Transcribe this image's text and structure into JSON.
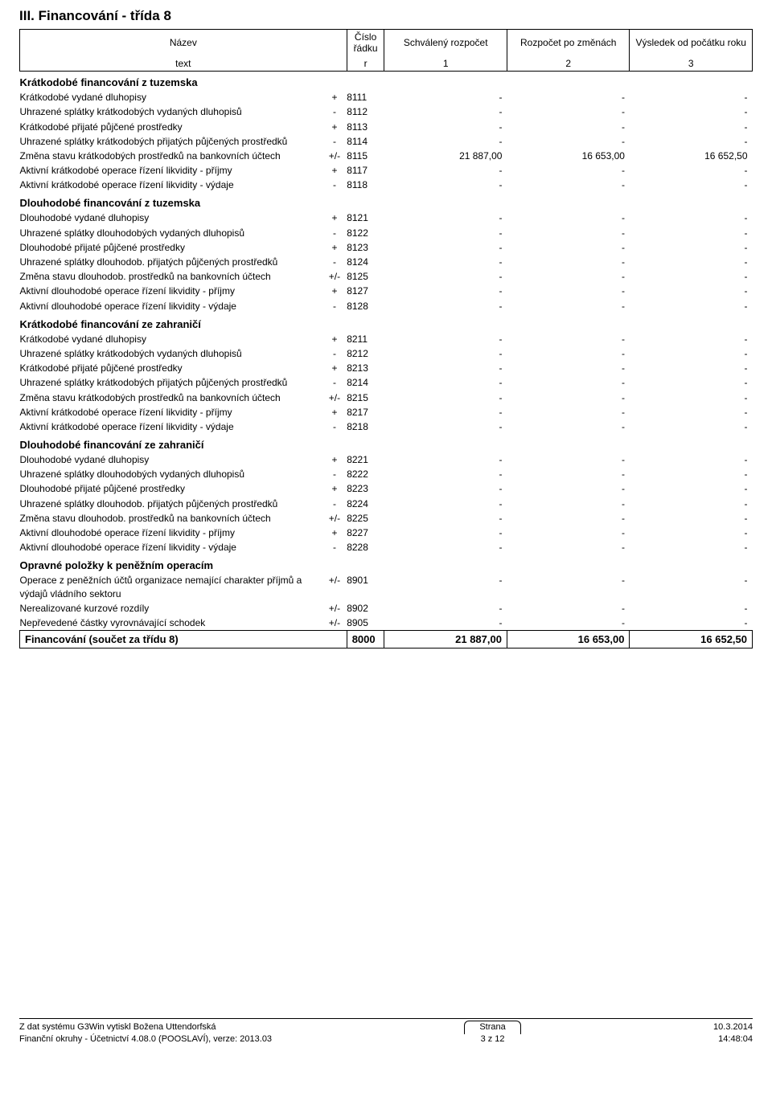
{
  "title": "III. Financování - třída 8",
  "header": {
    "name_top": "Název",
    "name_key": "text",
    "row_top": "Číslo řádku",
    "row_key": "r",
    "col1_top": "Schválený rozpočet",
    "col1_key": "1",
    "col2_top": "Rozpočet po změnách",
    "col2_key": "2",
    "col3_top": "Výsledek od počátku roku",
    "col3_key": "3"
  },
  "sections": [
    {
      "label": "Krátkodobé financování z tuzemska",
      "rows": [
        {
          "name": "Krátkodobé vydané dluhopisy",
          "sign": "+",
          "row": "8111",
          "v1": "-",
          "v2": "-",
          "v3": "-"
        },
        {
          "name": "Uhrazené splátky krátkodobých vydaných dluhopisů",
          "sign": "-",
          "row": "8112",
          "v1": "-",
          "v2": "-",
          "v3": "-"
        },
        {
          "name": "Krátkodobé přijaté půjčené prostředky",
          "sign": "+",
          "row": "8113",
          "v1": "-",
          "v2": "-",
          "v3": "-"
        },
        {
          "name": "Uhrazené splátky krátkodobých přijatých půjčených prostředků",
          "sign": "-",
          "row": "8114",
          "v1": "-",
          "v2": "-",
          "v3": "-"
        },
        {
          "name": "Změna stavu krátkodobých prostředků na bankovních účtech",
          "sign": "+/-",
          "row": "8115",
          "v1": "21 887,00",
          "v2": "16 653,00",
          "v3": "16 652,50"
        },
        {
          "name": "Aktivní krátkodobé operace řízení likvidity - příjmy",
          "sign": "+",
          "row": "8117",
          "v1": "-",
          "v2": "-",
          "v3": "-"
        },
        {
          "name": "Aktivní krátkodobé operace řízení likvidity - výdaje",
          "sign": "-",
          "row": "8118",
          "v1": "-",
          "v2": "-",
          "v3": "-"
        }
      ]
    },
    {
      "label": "Dlouhodobé financování z tuzemska",
      "rows": [
        {
          "name": "Dlouhodobé vydané dluhopisy",
          "sign": "+",
          "row": "8121",
          "v1": "-",
          "v2": "-",
          "v3": "-"
        },
        {
          "name": "Uhrazené splátky dlouhodobých vydaných dluhopisů",
          "sign": "-",
          "row": "8122",
          "v1": "-",
          "v2": "-",
          "v3": "-"
        },
        {
          "name": "Dlouhodobé přijaté půjčené prostředky",
          "sign": "+",
          "row": "8123",
          "v1": "-",
          "v2": "-",
          "v3": "-"
        },
        {
          "name": "Uhrazené splátky dlouhodob. přijatých půjčených prostředků",
          "sign": "-",
          "row": "8124",
          "v1": "-",
          "v2": "-",
          "v3": "-"
        },
        {
          "name": "Změna stavu dlouhodob. prostředků na bankovních účtech",
          "sign": "+/-",
          "row": "8125",
          "v1": "-",
          "v2": "-",
          "v3": "-"
        },
        {
          "name": "Aktivní dlouhodobé operace řízení likvidity - příjmy",
          "sign": "+",
          "row": "8127",
          "v1": "-",
          "v2": "-",
          "v3": "-"
        },
        {
          "name": "Aktivní dlouhodobé operace řízení likvidity - výdaje",
          "sign": "-",
          "row": "8128",
          "v1": "-",
          "v2": "-",
          "v3": "-"
        }
      ]
    },
    {
      "label": "Krátkodobé financování ze zahraničí",
      "rows": [
        {
          "name": "Krátkodobé vydané dluhopisy",
          "sign": "+",
          "row": "8211",
          "v1": "-",
          "v2": "-",
          "v3": "-"
        },
        {
          "name": "Uhrazené splátky krátkodobých vydaných dluhopisů",
          "sign": "-",
          "row": "8212",
          "v1": "-",
          "v2": "-",
          "v3": "-"
        },
        {
          "name": "Krátkodobé přijaté půjčené prostředky",
          "sign": "+",
          "row": "8213",
          "v1": "-",
          "v2": "-",
          "v3": "-"
        },
        {
          "name": "Uhrazené splátky krátkodobých přijatých půjčených prostředků",
          "sign": "-",
          "row": "8214",
          "v1": "-",
          "v2": "-",
          "v3": "-"
        },
        {
          "name": "Změna stavu krátkodobých prostředků na bankovních účtech",
          "sign": "+/-",
          "row": "8215",
          "v1": "-",
          "v2": "-",
          "v3": "-"
        },
        {
          "name": "Aktivní krátkodobé operace řízení likvidity - příjmy",
          "sign": "+",
          "row": "8217",
          "v1": "-",
          "v2": "-",
          "v3": "-"
        },
        {
          "name": "Aktivní krátkodobé operace řízení likvidity - výdaje",
          "sign": "-",
          "row": "8218",
          "v1": "-",
          "v2": "-",
          "v3": "-"
        }
      ]
    },
    {
      "label": "Dlouhodobé financování ze zahraničí",
      "rows": [
        {
          "name": "Dlouhodobé vydané dluhopisy",
          "sign": "+",
          "row": "8221",
          "v1": "-",
          "v2": "-",
          "v3": "-"
        },
        {
          "name": "Uhrazené splátky dlouhodobých vydaných dluhopisů",
          "sign": "-",
          "row": "8222",
          "v1": "-",
          "v2": "-",
          "v3": "-"
        },
        {
          "name": "Dlouhodobé přijaté půjčené prostředky",
          "sign": "+",
          "row": "8223",
          "v1": "-",
          "v2": "-",
          "v3": "-"
        },
        {
          "name": "Uhrazené splátky dlouhodob. přijatých půjčených prostředků",
          "sign": "-",
          "row": "8224",
          "v1": "-",
          "v2": "-",
          "v3": "-"
        },
        {
          "name": "Změna stavu dlouhodob. prostředků na bankovních účtech",
          "sign": "+/-",
          "row": "8225",
          "v1": "-",
          "v2": "-",
          "v3": "-"
        },
        {
          "name": "Aktivní dlouhodobé operace řízení likvidity - příjmy",
          "sign": "+",
          "row": "8227",
          "v1": "-",
          "v2": "-",
          "v3": "-"
        },
        {
          "name": "Aktivní dlouhodobé operace řízení likvidity - výdaje",
          "sign": "-",
          "row": "8228",
          "v1": "-",
          "v2": "-",
          "v3": "-"
        }
      ]
    },
    {
      "label": "Opravné položky k peněžním operacím",
      "rows": [
        {
          "name": "Operace z peněžních účtů organizace nemající charakter příjmů a výdajů vládního sektoru",
          "sign": "+/-",
          "row": "8901",
          "v1": "-",
          "v2": "-",
          "v3": "-"
        },
        {
          "name": "Nerealizované kurzové rozdíly",
          "sign": "+/-",
          "row": "8902",
          "v1": "-",
          "v2": "-",
          "v3": "-"
        },
        {
          "name": "Nepřevedené částky vyrovnávající schodek",
          "sign": "+/-",
          "row": "8905",
          "v1": "-",
          "v2": "-",
          "v3": "-"
        }
      ]
    }
  ],
  "grand_total": {
    "label": "Financování (součet za třídu 8)",
    "row": "8000",
    "v1": "21 887,00",
    "v2": "16 653,00",
    "v3": "16 652,50"
  },
  "footer": {
    "left1": "Z dat systému G3Win vytiskl Božena Uttendorfská",
    "left2": "Finanční okruhy - Účetnictví 4.08.0 (POOSLAVÍ), verze: 2013.03",
    "strana_label": "Strana",
    "strana_value": "3 z 12",
    "date": "10.3.2014",
    "time": "14:48:04"
  }
}
